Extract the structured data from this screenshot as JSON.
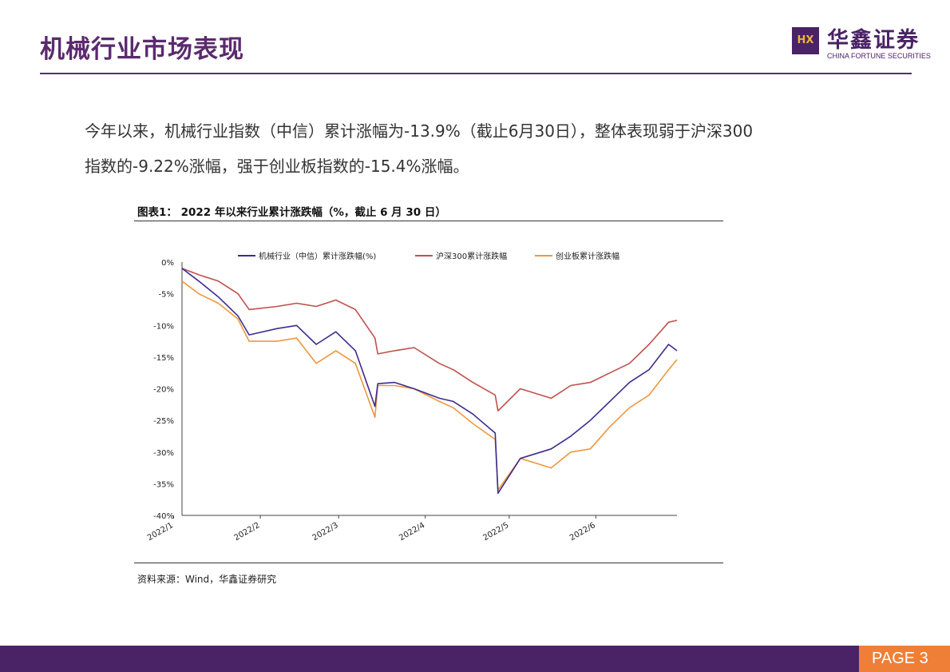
{
  "header": {
    "title": "机械行业市场表现",
    "logo_mark": "HX",
    "logo_cn": "华鑫证券",
    "logo_en": "CHINA FORTUNE SECURITIES"
  },
  "intro": {
    "line1": "今年以来，机械行业指数（中信）累计涨幅为-13.9%（截止6月30日），整体表现弱于沪深300",
    "line2": "指数的-9.22%涨幅，强于创业板指数的-15.4%涨幅。"
  },
  "figure": {
    "caption": "图表1：  2022 年以来行业累计涨跌幅（%，截止 6 月 30 日）",
    "source": "资料来源：Wind，华鑫证券研究"
  },
  "footer": {
    "page": "PAGE 3"
  },
  "colors": {
    "brand": "#4a2266",
    "accent": "#ef7f36"
  },
  "chart_data": {
    "type": "line",
    "title": "",
    "xlabel": "",
    "ylabel": "",
    "ylim": [
      -40,
      0
    ],
    "y_ticks": [
      "0%",
      "-5%",
      "-10%",
      "-15%",
      "-20%",
      "-25%",
      "-30%",
      "-35%",
      "-40%"
    ],
    "x_tick_labels": [
      "2022/1",
      "2022/2",
      "2022/3",
      "2022/4",
      "2022/5",
      "2022/6"
    ],
    "x": [
      "2022-01-04",
      "2022-01-10",
      "2022-01-17",
      "2022-01-24",
      "2022-01-28",
      "2022-02-07",
      "2022-02-14",
      "2022-02-21",
      "2022-02-28",
      "2022-03-07",
      "2022-03-14",
      "2022-03-15",
      "2022-03-21",
      "2022-03-28",
      "2022-04-06",
      "2022-04-11",
      "2022-04-18",
      "2022-04-26",
      "2022-04-27",
      "2022-05-05",
      "2022-05-16",
      "2022-05-23",
      "2022-05-30",
      "2022-06-06",
      "2022-06-13",
      "2022-06-20",
      "2022-06-27",
      "2022-06-30"
    ],
    "grid": false,
    "legend_position": "top",
    "series": [
      {
        "name": "机械行业（中信）累计涨跌幅(%)",
        "color": "#3b2d8f",
        "values": [
          -1,
          -3,
          -5.5,
          -8.5,
          -11.5,
          -10.5,
          -10,
          -13,
          -11,
          -14,
          -22.8,
          -19.2,
          -19,
          -20,
          -21.5,
          -22,
          -24,
          -27,
          -36.5,
          -31,
          -29.5,
          -27.5,
          -25,
          -22,
          -19,
          -17,
          -13,
          -14
        ]
      },
      {
        "name": "沪深300累计涨跌幅",
        "color": "#c0504d",
        "values": [
          -1,
          -2,
          -3,
          -5,
          -7.5,
          -7,
          -6.5,
          -7,
          -6,
          -7.5,
          -12,
          -14.5,
          -14,
          -13.5,
          -16,
          -17,
          -19,
          -21,
          -23.5,
          -20,
          -21.5,
          -19.5,
          -19,
          -17.5,
          -16,
          -13,
          -9.5,
          -9.2
        ]
      },
      {
        "name": "创业板累计涨跌幅",
        "color": "#f0973f",
        "values": [
          -3,
          -5,
          -6.5,
          -9,
          -12.5,
          -12.5,
          -12,
          -16,
          -14,
          -16,
          -24.5,
          -19.5,
          -19.5,
          -20,
          -22,
          -23,
          -25.5,
          -28,
          -36,
          -31,
          -32.5,
          -30,
          -29.5,
          -26,
          -23,
          -21,
          -17,
          -15.4
        ]
      }
    ]
  }
}
